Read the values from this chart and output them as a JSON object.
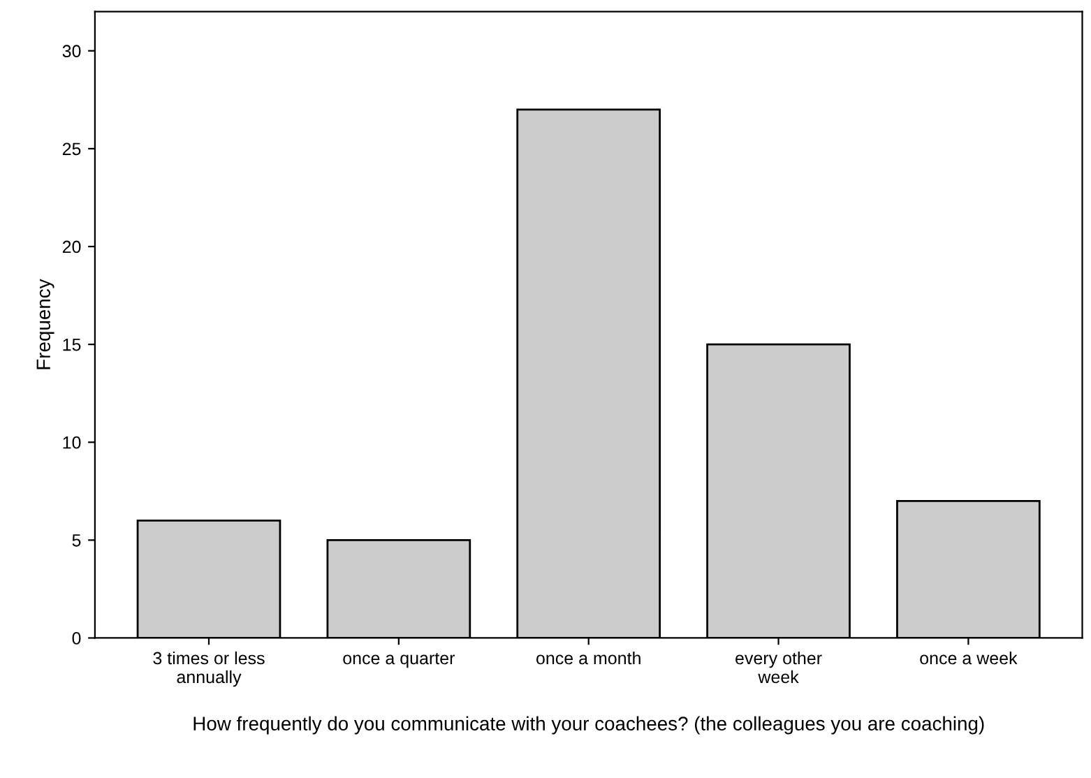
{
  "chart_data": {
    "type": "bar",
    "xlabel": "How frequently do you communicate with your coachees? (the colleagues you are coaching)",
    "ylabel": "Frequency",
    "categories": [
      "3 times or less\nannually",
      "once a quarter",
      "once a month",
      "every other\nweek",
      "once a week"
    ],
    "values": [
      6,
      5,
      27,
      15,
      7
    ],
    "color": "#cccccc",
    "ylim": [
      0,
      32
    ],
    "yticks": [
      0,
      5,
      10,
      15,
      20,
      25,
      30
    ],
    "grid": false,
    "legend": false
  }
}
